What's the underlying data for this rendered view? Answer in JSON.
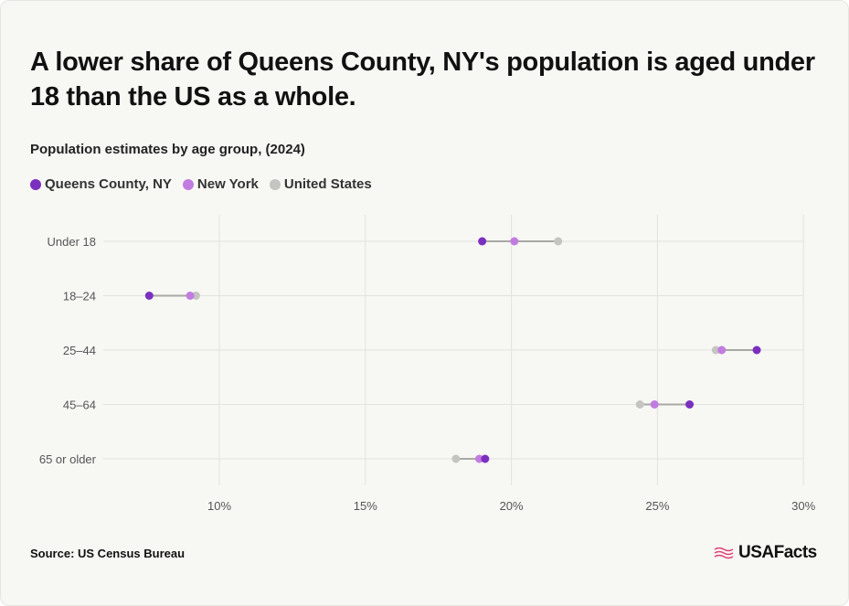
{
  "header": {
    "title": "A lower share of Queens County, NY's population is aged under 18 than the US as a whole.",
    "subtitle": "Population estimates by age group, (2024)"
  },
  "legend": [
    {
      "label": "Queens County, NY",
      "color": "#7b2fbf"
    },
    {
      "label": "New York",
      "color": "#c27ce0"
    },
    {
      "label": "United States",
      "color": "#c4c4c0"
    }
  ],
  "footer": {
    "source": "Source: US Census Bureau",
    "brand": "USAFacts",
    "brand_icon": "usa-flag-icon"
  },
  "chart_data": {
    "type": "scatter",
    "subtype": "dumbbell",
    "categories": [
      "Under 18",
      "18–24",
      "25–44",
      "45–64",
      "65 or older"
    ],
    "x_ticks": [
      10,
      15,
      20,
      25,
      30
    ],
    "x_tick_labels": [
      "10%",
      "15%",
      "20%",
      "25%",
      "30%"
    ],
    "xlim": [
      6,
      30
    ],
    "grid": true,
    "legend_position": "top-left",
    "series": [
      {
        "name": "Queens County, NY",
        "color": "#7b2fbf",
        "values": [
          19.0,
          7.6,
          28.4,
          26.1,
          19.1
        ]
      },
      {
        "name": "New York",
        "color": "#c27ce0",
        "values": [
          20.1,
          9.0,
          27.2,
          24.9,
          18.9
        ]
      },
      {
        "name": "United States",
        "color": "#c4c4c0",
        "values": [
          21.6,
          9.2,
          27.0,
          24.4,
          18.1
        ]
      }
    ]
  }
}
